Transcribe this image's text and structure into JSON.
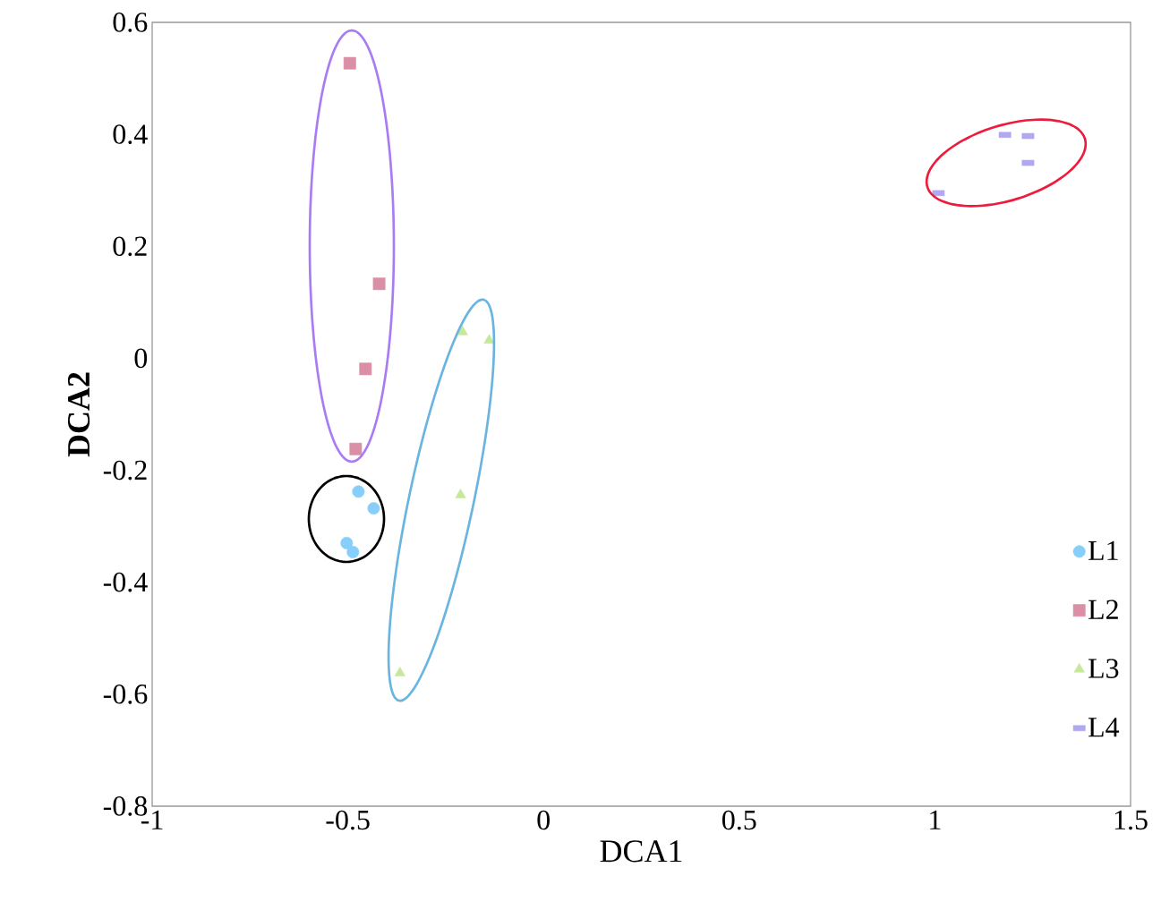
{
  "chart_data": {
    "type": "scatter",
    "xlabel": "DCA1",
    "ylabel": "DCA2",
    "xlim": [
      -1,
      1.5
    ],
    "ylim": [
      -0.8,
      0.6
    ],
    "xticks": [
      -1,
      -0.5,
      0,
      0.5,
      1,
      1.5
    ],
    "yticks": [
      -0.8,
      -0.6,
      -0.4,
      -0.2,
      0,
      0.2,
      0.4,
      0.6
    ],
    "grid": false,
    "legend": "bottom right",
    "series": [
      {
        "name": "L1",
        "color": "#87cefa",
        "marker": "circle",
        "x": [
          -0.473,
          -0.434,
          -0.503,
          -0.487
        ],
        "values": [
          -0.238,
          -0.268,
          -0.33,
          -0.346
        ]
      },
      {
        "name": "L2",
        "color": "#db8fa6",
        "marker": "square",
        "x": [
          -0.495,
          -0.42,
          -0.455,
          -0.48
        ],
        "values": [
          0.527,
          0.133,
          -0.019,
          -0.162
        ]
      },
      {
        "name": "L3",
        "color": "#c6e89a",
        "marker": "triangle",
        "x": [
          -0.207,
          -0.139,
          -0.212,
          -0.367
        ],
        "values": [
          0.047,
          0.032,
          -0.244,
          -0.562
        ]
      },
      {
        "name": "L4",
        "color": "#b0a8f0",
        "x": [
          1.179,
          1.238,
          1.238,
          1.009
        ],
        "values": [
          0.399,
          0.397,
          0.349,
          0.295
        ]
      }
    ]
  }
}
